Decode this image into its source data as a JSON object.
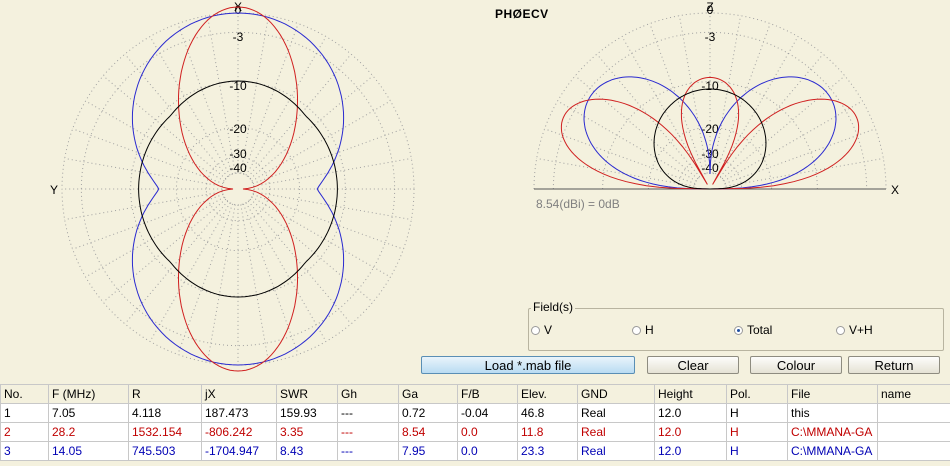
{
  "callsign": "PHØECV",
  "db_reference": "8.54(dBi) = 0dB",
  "plot_colors": {
    "row1": "#000000",
    "row2": "#d02020",
    "row3": "#2a2ad0",
    "grid": "#a0a0a0",
    "background": "#f4f1de"
  },
  "azimuth_plot": {
    "axis_labels": {
      "top": "X",
      "left": "Y"
    },
    "ring_labels": [
      "0",
      "-3",
      "-10",
      "-20",
      "-30",
      "-40"
    ]
  },
  "elevation_plot": {
    "axis_labels": {
      "top": "Z",
      "right": "X"
    },
    "ring_labels": [
      "0",
      "-3",
      "-10",
      "-20",
      "-30",
      "-40"
    ]
  },
  "fields": {
    "title": "Field(s)",
    "options": [
      {
        "label": "V",
        "selected": false
      },
      {
        "label": "H",
        "selected": false
      },
      {
        "label": "Total",
        "selected": true
      },
      {
        "label": "V+H",
        "selected": false
      }
    ]
  },
  "buttons": {
    "load": "Load *.mab file",
    "clear": "Clear",
    "colour": "Colour",
    "return": "Return"
  },
  "table": {
    "headers": [
      "No.",
      "F (MHz)",
      "R",
      "jX",
      "SWR",
      "Gh",
      "Ga",
      "F/B",
      "Elev.",
      "GND",
      "Height",
      "Pol.",
      "File",
      "name"
    ],
    "rows": [
      [
        "1",
        "7.05",
        "4.118",
        "187.473",
        "159.93",
        "---",
        "0.72",
        "-0.04",
        "46.8",
        "Real",
        "12.0",
        "H",
        "this",
        ""
      ],
      [
        "2",
        "28.2",
        "1532.154",
        "-806.242",
        "3.35",
        "---",
        "8.54",
        "0.0",
        "11.8",
        "Real",
        "12.0",
        "H",
        "C:\\MMANA-GA",
        ""
      ],
      [
        "3",
        "14.05",
        "745.503",
        "-1704.947",
        "8.43",
        "---",
        "7.95",
        "0.0",
        "23.3",
        "Real",
        "12.0",
        "H",
        "C:\\MMANA-GA",
        ""
      ]
    ]
  }
}
